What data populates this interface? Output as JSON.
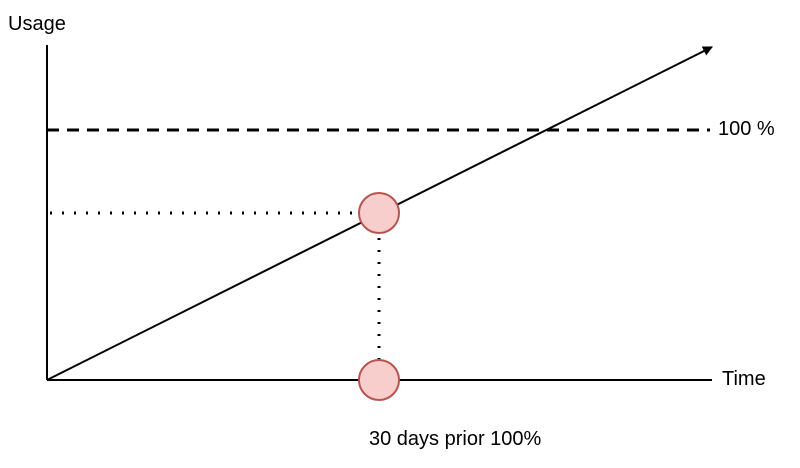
{
  "labels": {
    "y_axis": "Usage",
    "x_axis": "Time",
    "threshold": "100 %",
    "marker": "30 days prior 100%"
  },
  "colors": {
    "marker_fill": "#f8cecc",
    "marker_stroke": "#b85450",
    "line": "#000000"
  }
}
